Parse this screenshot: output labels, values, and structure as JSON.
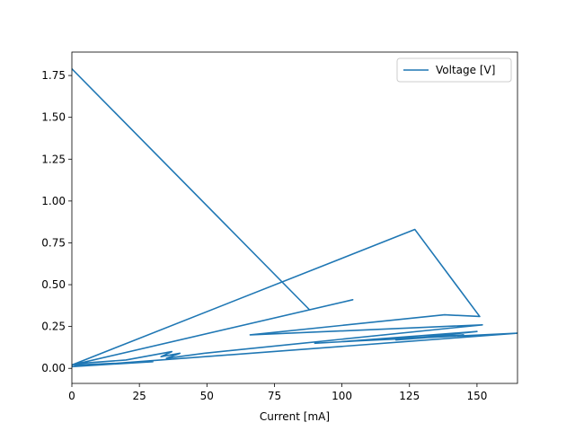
{
  "chart_data": {
    "type": "line",
    "title": "",
    "xlabel": "Current [mA]",
    "ylabel": "",
    "xlim": [
      0,
      165
    ],
    "ylim": [
      -0.09,
      1.89
    ],
    "xticks": [
      0,
      25,
      50,
      75,
      100,
      125,
      150
    ],
    "xtick_labels": [
      "0",
      "25",
      "50",
      "75",
      "100",
      "125",
      "150"
    ],
    "yticks": [
      0.0,
      0.25,
      0.5,
      0.75,
      1.0,
      1.25,
      1.5,
      1.75
    ],
    "ytick_labels": [
      "0.00",
      "0.25",
      "0.50",
      "0.75",
      "1.00",
      "1.25",
      "1.50",
      "1.75"
    ],
    "grid": false,
    "legend_position": "upper right",
    "series": [
      {
        "name": "Voltage [V]",
        "color": "#1f77b4",
        "x": [
          0,
          88,
          104,
          0,
          127,
          151,
          138,
          66,
          152,
          49,
          35,
          40,
          33,
          37,
          20,
          3,
          1,
          30,
          0,
          165,
          100,
          150,
          120,
          145,
          90
        ],
        "y": [
          1.79,
          0.35,
          0.41,
          0.02,
          0.83,
          0.31,
          0.32,
          0.2,
          0.26,
          0.09,
          0.06,
          0.09,
          0.07,
          0.1,
          0.05,
          0.03,
          0.02,
          0.04,
          0.01,
          0.21,
          0.16,
          0.22,
          0.17,
          0.2,
          0.15
        ]
      }
    ]
  }
}
